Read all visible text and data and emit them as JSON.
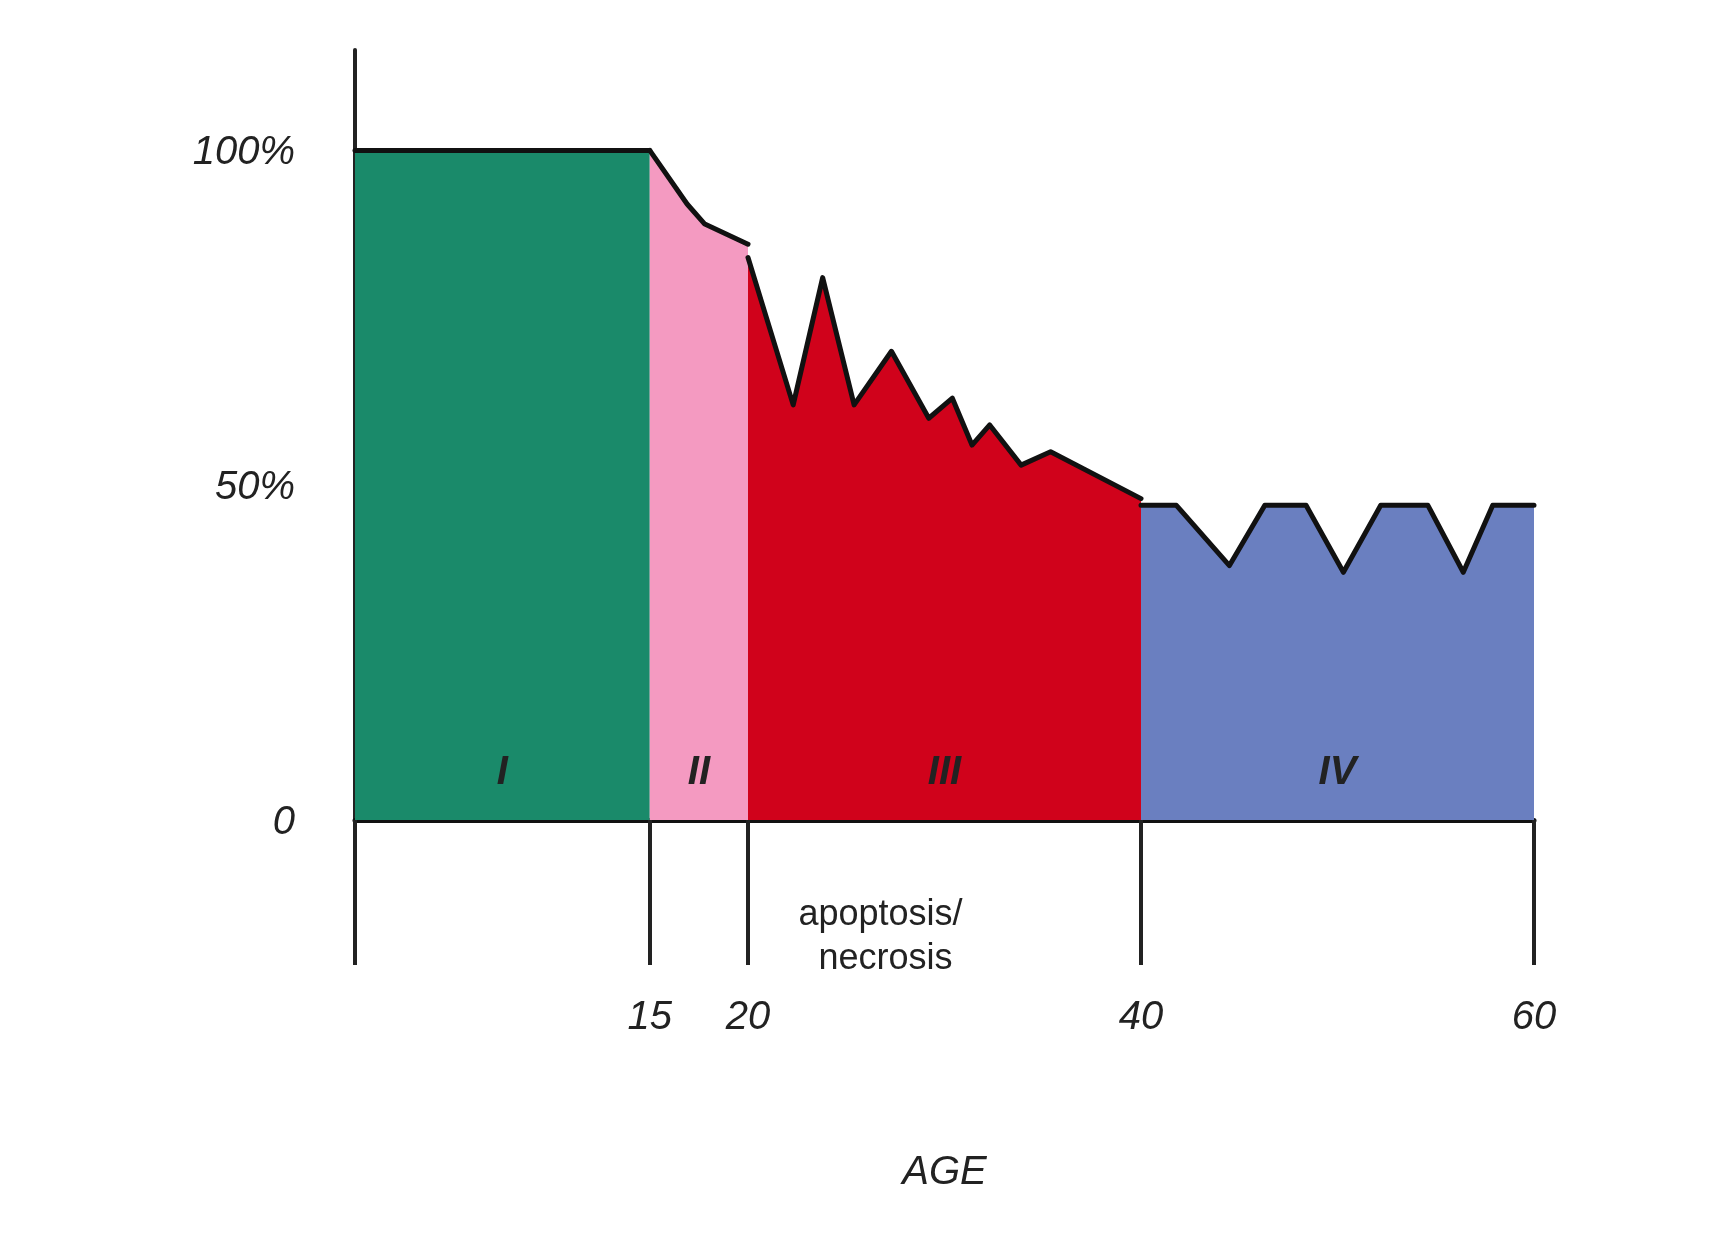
{
  "chart_data": {
    "type": "area",
    "xlabel": "AGE",
    "xlim": [
      0,
      60
    ],
    "xticks": [
      {
        "value": 0,
        "label": null
      },
      15,
      20,
      40,
      60
    ],
    "ylim": [
      0,
      115
    ],
    "yticks": [
      {
        "value": 0,
        "label": "0"
      },
      {
        "value": 50,
        "label": "50%"
      },
      {
        "value": 100,
        "label": "100%"
      }
    ],
    "grid": false,
    "marker": "none",
    "line_style": "solid",
    "series": [
      {
        "color": "#1a8a6a",
        "x": [
          0,
          15
        ],
        "values": [
          100,
          100
        ]
      },
      {
        "color": "#f49ac1",
        "x": [
          15,
          16.9,
          17.8,
          20
        ],
        "values": [
          100,
          92,
          89,
          86
        ]
      },
      {
        "color": "#d0021b",
        "x": [
          20,
          22.3,
          23.8,
          25.4,
          27.3,
          29.2,
          30.4,
          31.4,
          32.3,
          33.9,
          35.4,
          40
        ],
        "values": [
          84,
          62,
          81,
          62,
          70,
          60,
          63,
          56,
          59,
          53,
          55,
          48
        ]
      },
      {
        "color": "#6a7fc0",
        "x": [
          40,
          41.8,
          44.5,
          46.3,
          48.4,
          50.3,
          52.2,
          54.6,
          56.4,
          57.9,
          60
        ],
        "values": [
          47,
          47,
          38,
          47,
          47,
          37,
          47,
          47,
          37,
          47,
          47
        ]
      }
    ],
    "annotations": [
      "I",
      "II",
      "III",
      "IV",
      "apoptosis/ necrosis"
    ]
  }
}
